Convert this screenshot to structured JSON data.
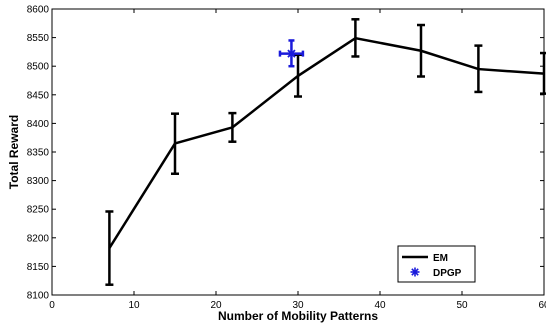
{
  "chart_data": {
    "type": "line",
    "title": "",
    "xlabel": "Number of Mobility Patterns",
    "ylabel": "Total Reward",
    "xlim": [
      0,
      60
    ],
    "ylim": [
      8100,
      8600
    ],
    "x_ticks": [
      0,
      10,
      20,
      30,
      40,
      50,
      60
    ],
    "x_tick_labels": [
      "0",
      "10",
      "20",
      "30",
      "40",
      "50",
      "60"
    ],
    "y_ticks": [
      8100,
      8150,
      8200,
      8250,
      8300,
      8350,
      8400,
      8450,
      8500,
      8550,
      8600
    ],
    "y_tick_labels": [
      "8100",
      "8150",
      "8200",
      "8250",
      "8300",
      "8350",
      "8400",
      "8450",
      "8500",
      "8550",
      "8600"
    ],
    "grid": false,
    "legend_position": "bottom-right",
    "series": [
      {
        "name": "EM",
        "style": "line",
        "color": "#000000",
        "x": [
          7,
          15,
          22,
          30,
          37,
          45,
          52,
          60
        ],
        "y": [
          8182,
          8365,
          8393,
          8483,
          8549,
          8527,
          8495,
          8487
        ],
        "err_low": [
          8118,
          8312,
          8368,
          8447,
          8517,
          8482,
          8455,
          8452
        ],
        "err_high": [
          8246,
          8417,
          8418,
          8520,
          8582,
          8572,
          8536,
          8523
        ]
      },
      {
        "name": "DPGP",
        "style": "marker",
        "marker": "asterisk",
        "color": "#1a1adb",
        "x": [
          29.2
        ],
        "y": [
          8522
        ],
        "err_low": [
          8500
        ],
        "err_high": [
          8545
        ],
        "xerr_low": [
          27.8
        ],
        "xerr_high": [
          30.6
        ]
      }
    ]
  }
}
